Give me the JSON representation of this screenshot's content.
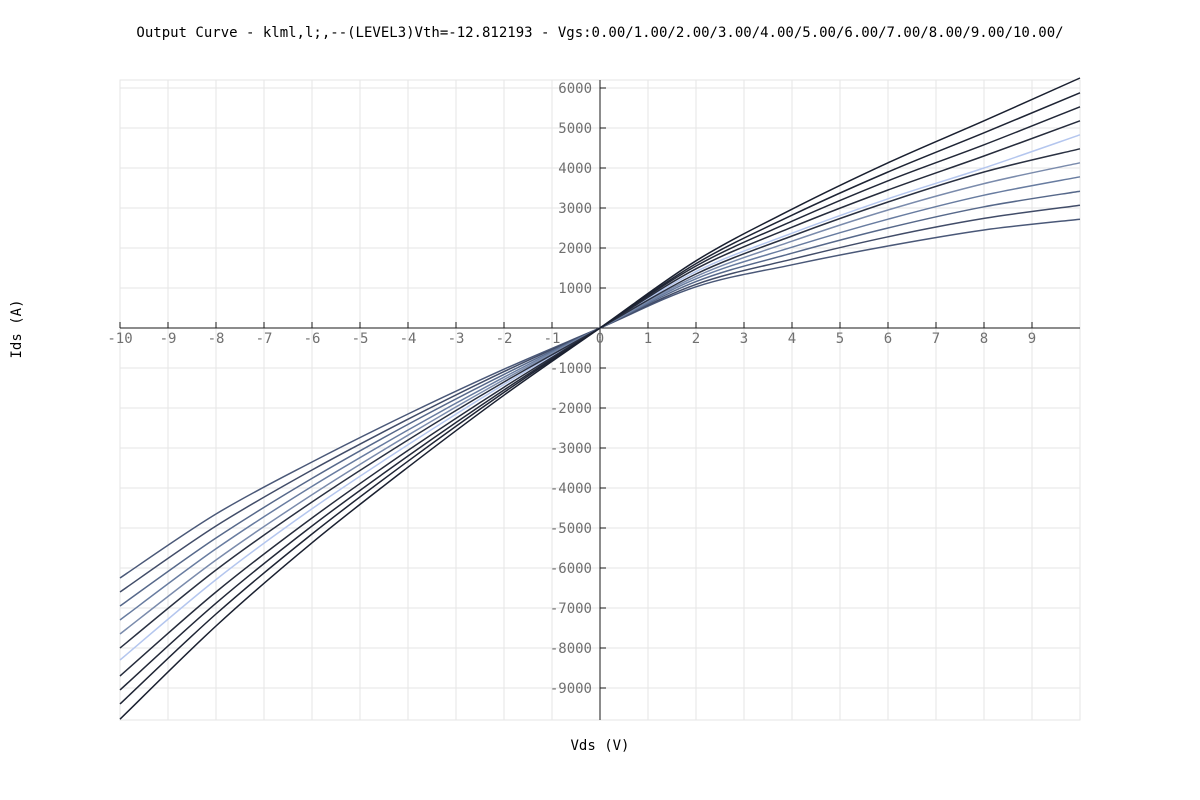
{
  "chart_data": {
    "type": "line",
    "title": "Output Curve - klml,l;,--(LEVEL3)Vth=-12.812193 - Vgs:0.00/1.00/2.00/3.00/4.00/5.00/6.00/7.00/8.00/9.00/10.00/",
    "xlabel": "Vds (V)",
    "ylabel": "Ids (A)",
    "xlim": [
      -10,
      10
    ],
    "ylim": [
      -9800,
      6200
    ],
    "x_ticks": [
      -10,
      -9,
      -8,
      -7,
      -6,
      -5,
      -4,
      -3,
      -2,
      -1,
      0,
      1,
      2,
      3,
      4,
      5,
      6,
      7,
      8,
      9
    ],
    "y_ticks": [
      6000,
      5000,
      4000,
      3000,
      2000,
      1000,
      -1000,
      -2000,
      -3000,
      -4000,
      -5000,
      -6000,
      -7000,
      -8000,
      -9000
    ],
    "grid": true,
    "x": [
      -10,
      -8,
      -6,
      -4,
      -2,
      0,
      2,
      4,
      6,
      8,
      10
    ],
    "series": [
      {
        "color": "#4a5878",
        "values": [
          -6250,
          -4650,
          -3350,
          -2150,
          -1030,
          0,
          1030,
          1580,
          2050,
          2450,
          2720
        ]
      },
      {
        "color": "#414c68",
        "values": [
          -6600,
          -4950,
          -3550,
          -2280,
          -1090,
          0,
          1090,
          1720,
          2280,
          2740,
          3070
        ]
      },
      {
        "color": "#56688a",
        "values": [
          -6950,
          -5250,
          -3760,
          -2410,
          -1160,
          0,
          1160,
          1870,
          2500,
          3030,
          3420
        ]
      },
      {
        "color": "#687ca0",
        "values": [
          -7300,
          -5520,
          -3960,
          -2550,
          -1230,
          0,
          1230,
          2020,
          2720,
          3320,
          3780
        ]
      },
      {
        "color": "#7a8bac",
        "values": [
          -7650,
          -5800,
          -4170,
          -2680,
          -1290,
          0,
          1290,
          2170,
          2950,
          3610,
          4130
        ]
      },
      {
        "color": "#b4c6ee",
        "values": [
          -8300,
          -6290,
          -4520,
          -2920,
          -1410,
          0,
          1410,
          2370,
          3230,
          4000,
          4830
        ]
      },
      {
        "color": "#2a3142",
        "values": [
          -8000,
          -6050,
          -4350,
          -2800,
          -1350,
          0,
          1350,
          2300,
          3150,
          3900,
          4480
        ]
      },
      {
        "color": "#262c3c",
        "values": [
          -8700,
          -6600,
          -4750,
          -3060,
          -1480,
          0,
          1480,
          2520,
          3450,
          4300,
          5180
        ]
      },
      {
        "color": "#222838",
        "values": [
          -9050,
          -6880,
          -4950,
          -3200,
          -1550,
          0,
          1550,
          2670,
          3680,
          4580,
          5530
        ]
      },
      {
        "color": "#1e2434",
        "values": [
          -9400,
          -7150,
          -5150,
          -3330,
          -1610,
          0,
          1610,
          2820,
          3900,
          4880,
          5880
        ]
      },
      {
        "color": "#1a2030",
        "values": [
          -9780,
          -7450,
          -5370,
          -3480,
          -1680,
          0,
          1680,
          2970,
          4130,
          5180,
          6250
        ]
      }
    ]
  }
}
